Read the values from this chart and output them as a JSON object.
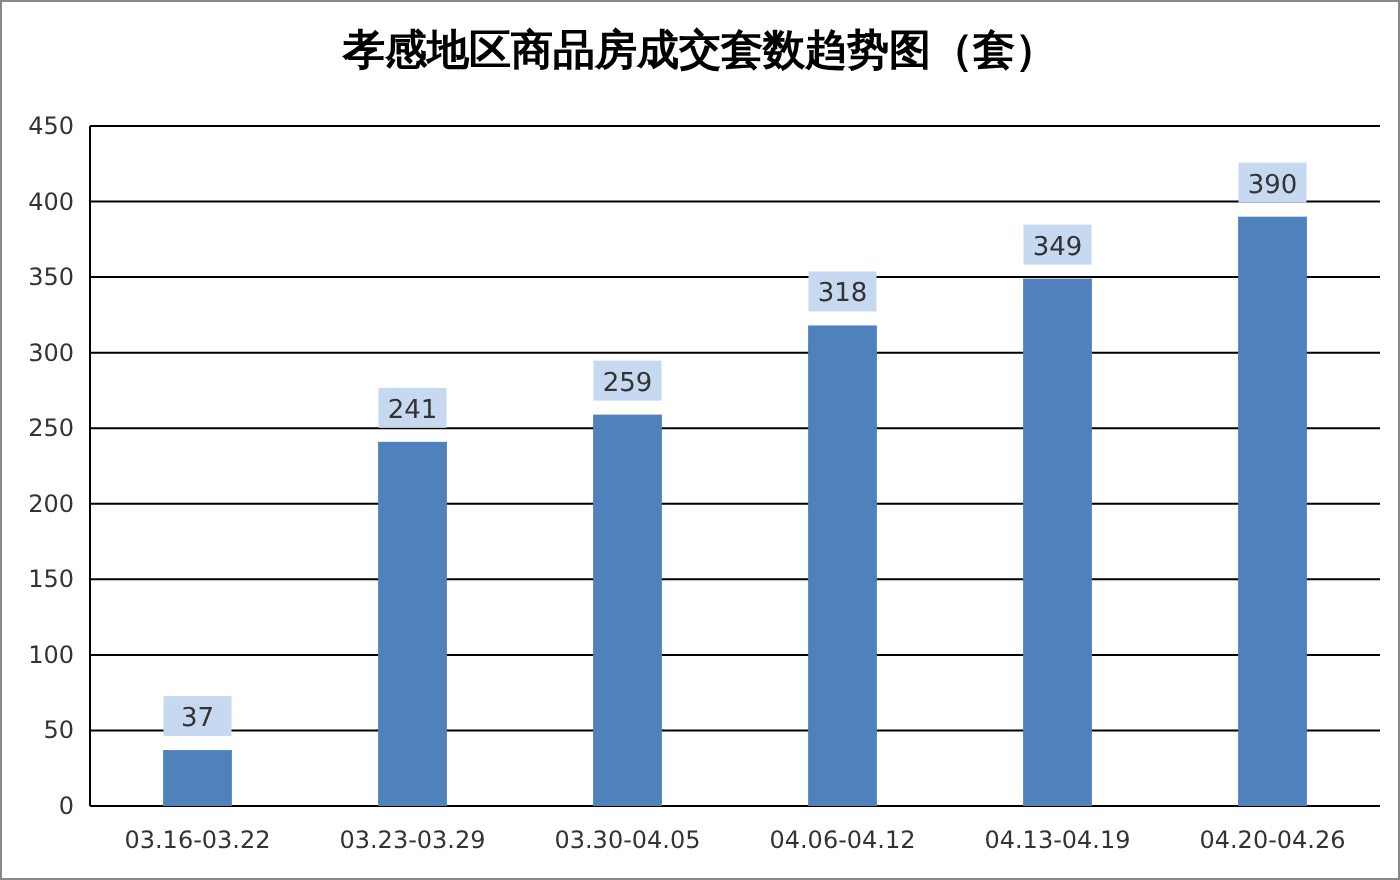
{
  "chart_data": {
    "type": "bar",
    "title": "孝感地区商品房成交套数趋势图（套）",
    "categories": [
      "03.16-03.22",
      "03.23-03.29",
      "03.30-04.05",
      "04.06-04.12",
      "04.13-04.19",
      "04.20-04.26"
    ],
    "values": [
      37,
      241,
      259,
      318,
      349,
      390
    ],
    "color": "#4f81bd",
    "ylim": [
      0,
      450
    ],
    "yticks": [
      0,
      50,
      100,
      150,
      200,
      250,
      300,
      350,
      400,
      450
    ],
    "grid": "y",
    "data_labels": true
  }
}
